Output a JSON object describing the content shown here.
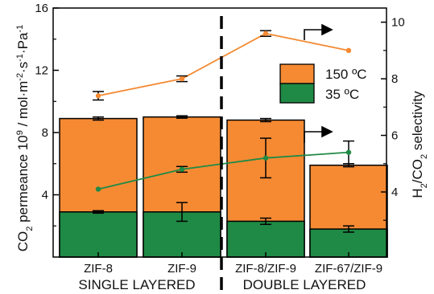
{
  "chart_data": {
    "type": "bar",
    "categories": [
      "ZIF-8",
      "ZIF-9",
      "ZIF-8/ZIF-9",
      "ZIF-67/ZIF-9"
    ],
    "groups": [
      "SINGLE LAYERED",
      "DOUBLE LAYERED"
    ],
    "left_axis": {
      "title_parts": [
        "CO",
        "2",
        " permeance 10",
        "9",
        " / mol·m",
        "-2",
        "·s",
        "-1",
        "·Pa",
        "-1"
      ],
      "ylim": [
        0,
        16
      ],
      "ticks": [
        4,
        8,
        12,
        16
      ]
    },
    "right_axis": {
      "title_parts": [
        "H",
        "2",
        "/CO",
        "2",
        " selectivity"
      ],
      "ylim": [
        1.7,
        10.5
      ],
      "ticks": [
        4,
        6,
        8,
        10
      ]
    },
    "series": [
      {
        "name": "150 ºC",
        "color": "#f58a33",
        "kind": "bar",
        "values": [
          8.9,
          9.0,
          8.8,
          5.9
        ],
        "errors": [
          0.1,
          0.0,
          0.1,
          0.1
        ]
      },
      {
        "name": "35 ºC",
        "color": "#1f8a45",
        "kind": "bar",
        "values": [
          2.9,
          2.9,
          2.3,
          1.8
        ],
        "errors": [
          0.0,
          0.6,
          0.2,
          0.2
        ]
      },
      {
        "kind": "line",
        "axis": "right",
        "color": "#f58a33",
        "values": [
          7.4,
          8.0,
          9.6,
          9.0
        ],
        "errors": [
          0.15,
          0.1,
          0.1,
          0.0
        ]
      },
      {
        "kind": "line",
        "axis": "right",
        "color": "#1f8a45",
        "values": [
          4.1,
          4.8,
          5.2,
          5.4
        ],
        "errors": [
          0.0,
          0.1,
          0.7,
          0.4
        ]
      }
    ],
    "divider": "dashed",
    "legend_position": "upper-right"
  }
}
